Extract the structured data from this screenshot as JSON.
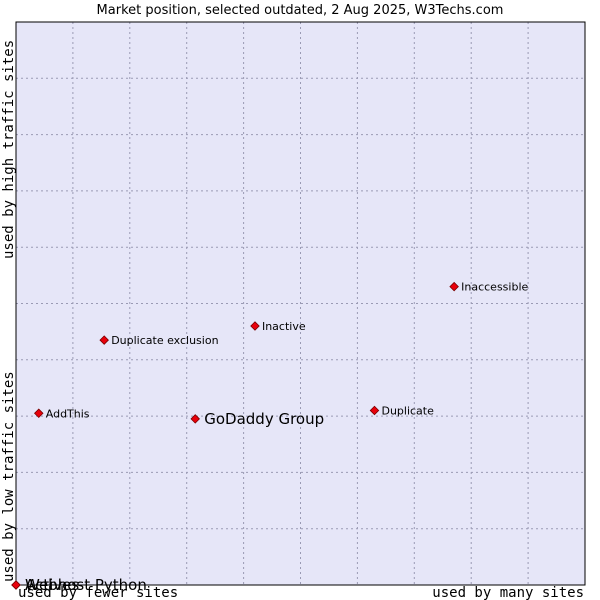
{
  "chart_data": {
    "type": "scatter",
    "title": "Market position, selected outdated, 2 Aug 2025, W3Techs.com",
    "xlabel_left": "used by fewer sites",
    "xlabel_right": "used by many sites",
    "ylabel_bottom": "used by low traffic sites",
    "ylabel_top": "used by high traffic sites",
    "xlim": [
      0,
      100
    ],
    "ylim": [
      0,
      100
    ],
    "grid": true,
    "colors": {
      "plot_bg": "#e6e6f8",
      "marker": "#e8000b",
      "marker_stroke": "#7a0000",
      "border": "#000000"
    },
    "points": [
      {
        "label": "Inaccessible",
        "x": 77,
        "y": 53,
        "highlight": false
      },
      {
        "label": "Inactive",
        "x": 42,
        "y": 46,
        "highlight": false
      },
      {
        "label": "Duplicate exclusion",
        "x": 15.5,
        "y": 43.5,
        "highlight": false
      },
      {
        "label": "AddThis",
        "x": 4,
        "y": 30.5,
        "highlight": false
      },
      {
        "label": "Duplicate",
        "x": 63,
        "y": 31,
        "highlight": false
      },
      {
        "label": "GoDaddy Group",
        "x": 31.5,
        "y": 29.5,
        "highlight": true
      },
      {
        "label": "Webhost Python",
        "x": 0,
        "y": 0,
        "highlight": true
      },
      {
        "label": "Actives",
        "x": 0,
        "y": 0,
        "highlight": true
      }
    ]
  }
}
